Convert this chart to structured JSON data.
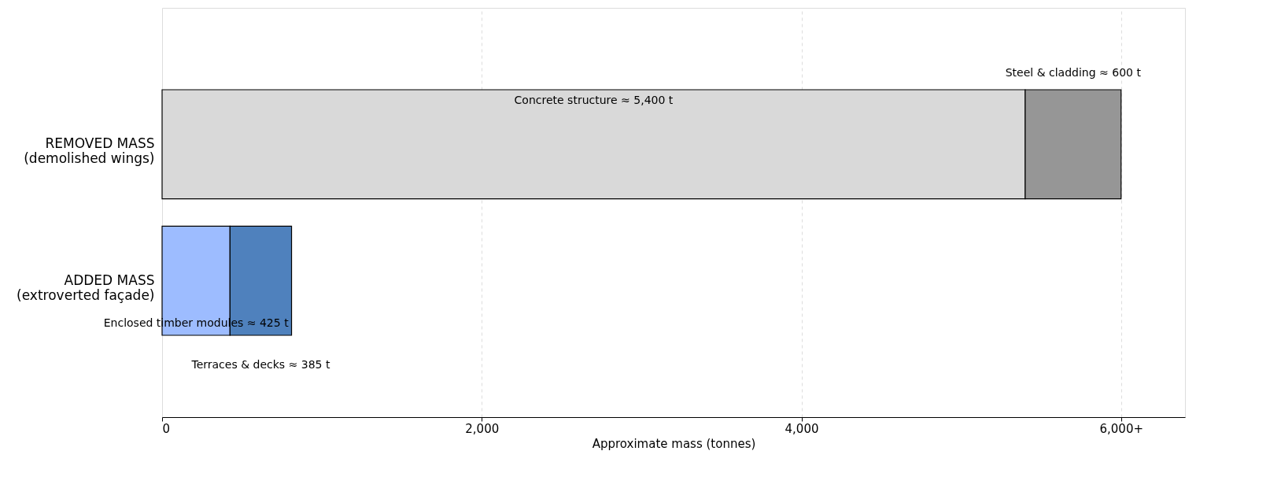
{
  "chart_data": {
    "type": "bar",
    "orientation": "horizontal",
    "stacked": true,
    "categories": [
      "REMOVED MASS\n(demolished wings)",
      "ADDED MASS\n(extroverted façade)"
    ],
    "series": [
      {
        "colors": [
          "#d9d9d9",
          "#9dbcff"
        ],
        "values": [
          5400,
          425
        ]
      },
      {
        "colors": [
          "#969696",
          "#4f81bd"
        ],
        "values": [
          600,
          385
        ]
      }
    ],
    "xlabel": "Approximate mass (tonnes)",
    "xlim": [
      0,
      6400
    ],
    "xticks": [
      0,
      {
        "value": 2000,
        "label": "2,000"
      },
      {
        "value": 4000,
        "label": "4,000"
      },
      {
        "value": 6000,
        "label": "6,000+"
      }
    ],
    "grid": "x",
    "legend": false,
    "annotations": [
      "Concrete structure ≈ 5,400 t",
      "Steel & cladding ≈ 600 t",
      "Enclosed timber modules ≈ 425 t",
      "Terraces & decks ≈ 385 t"
    ]
  }
}
